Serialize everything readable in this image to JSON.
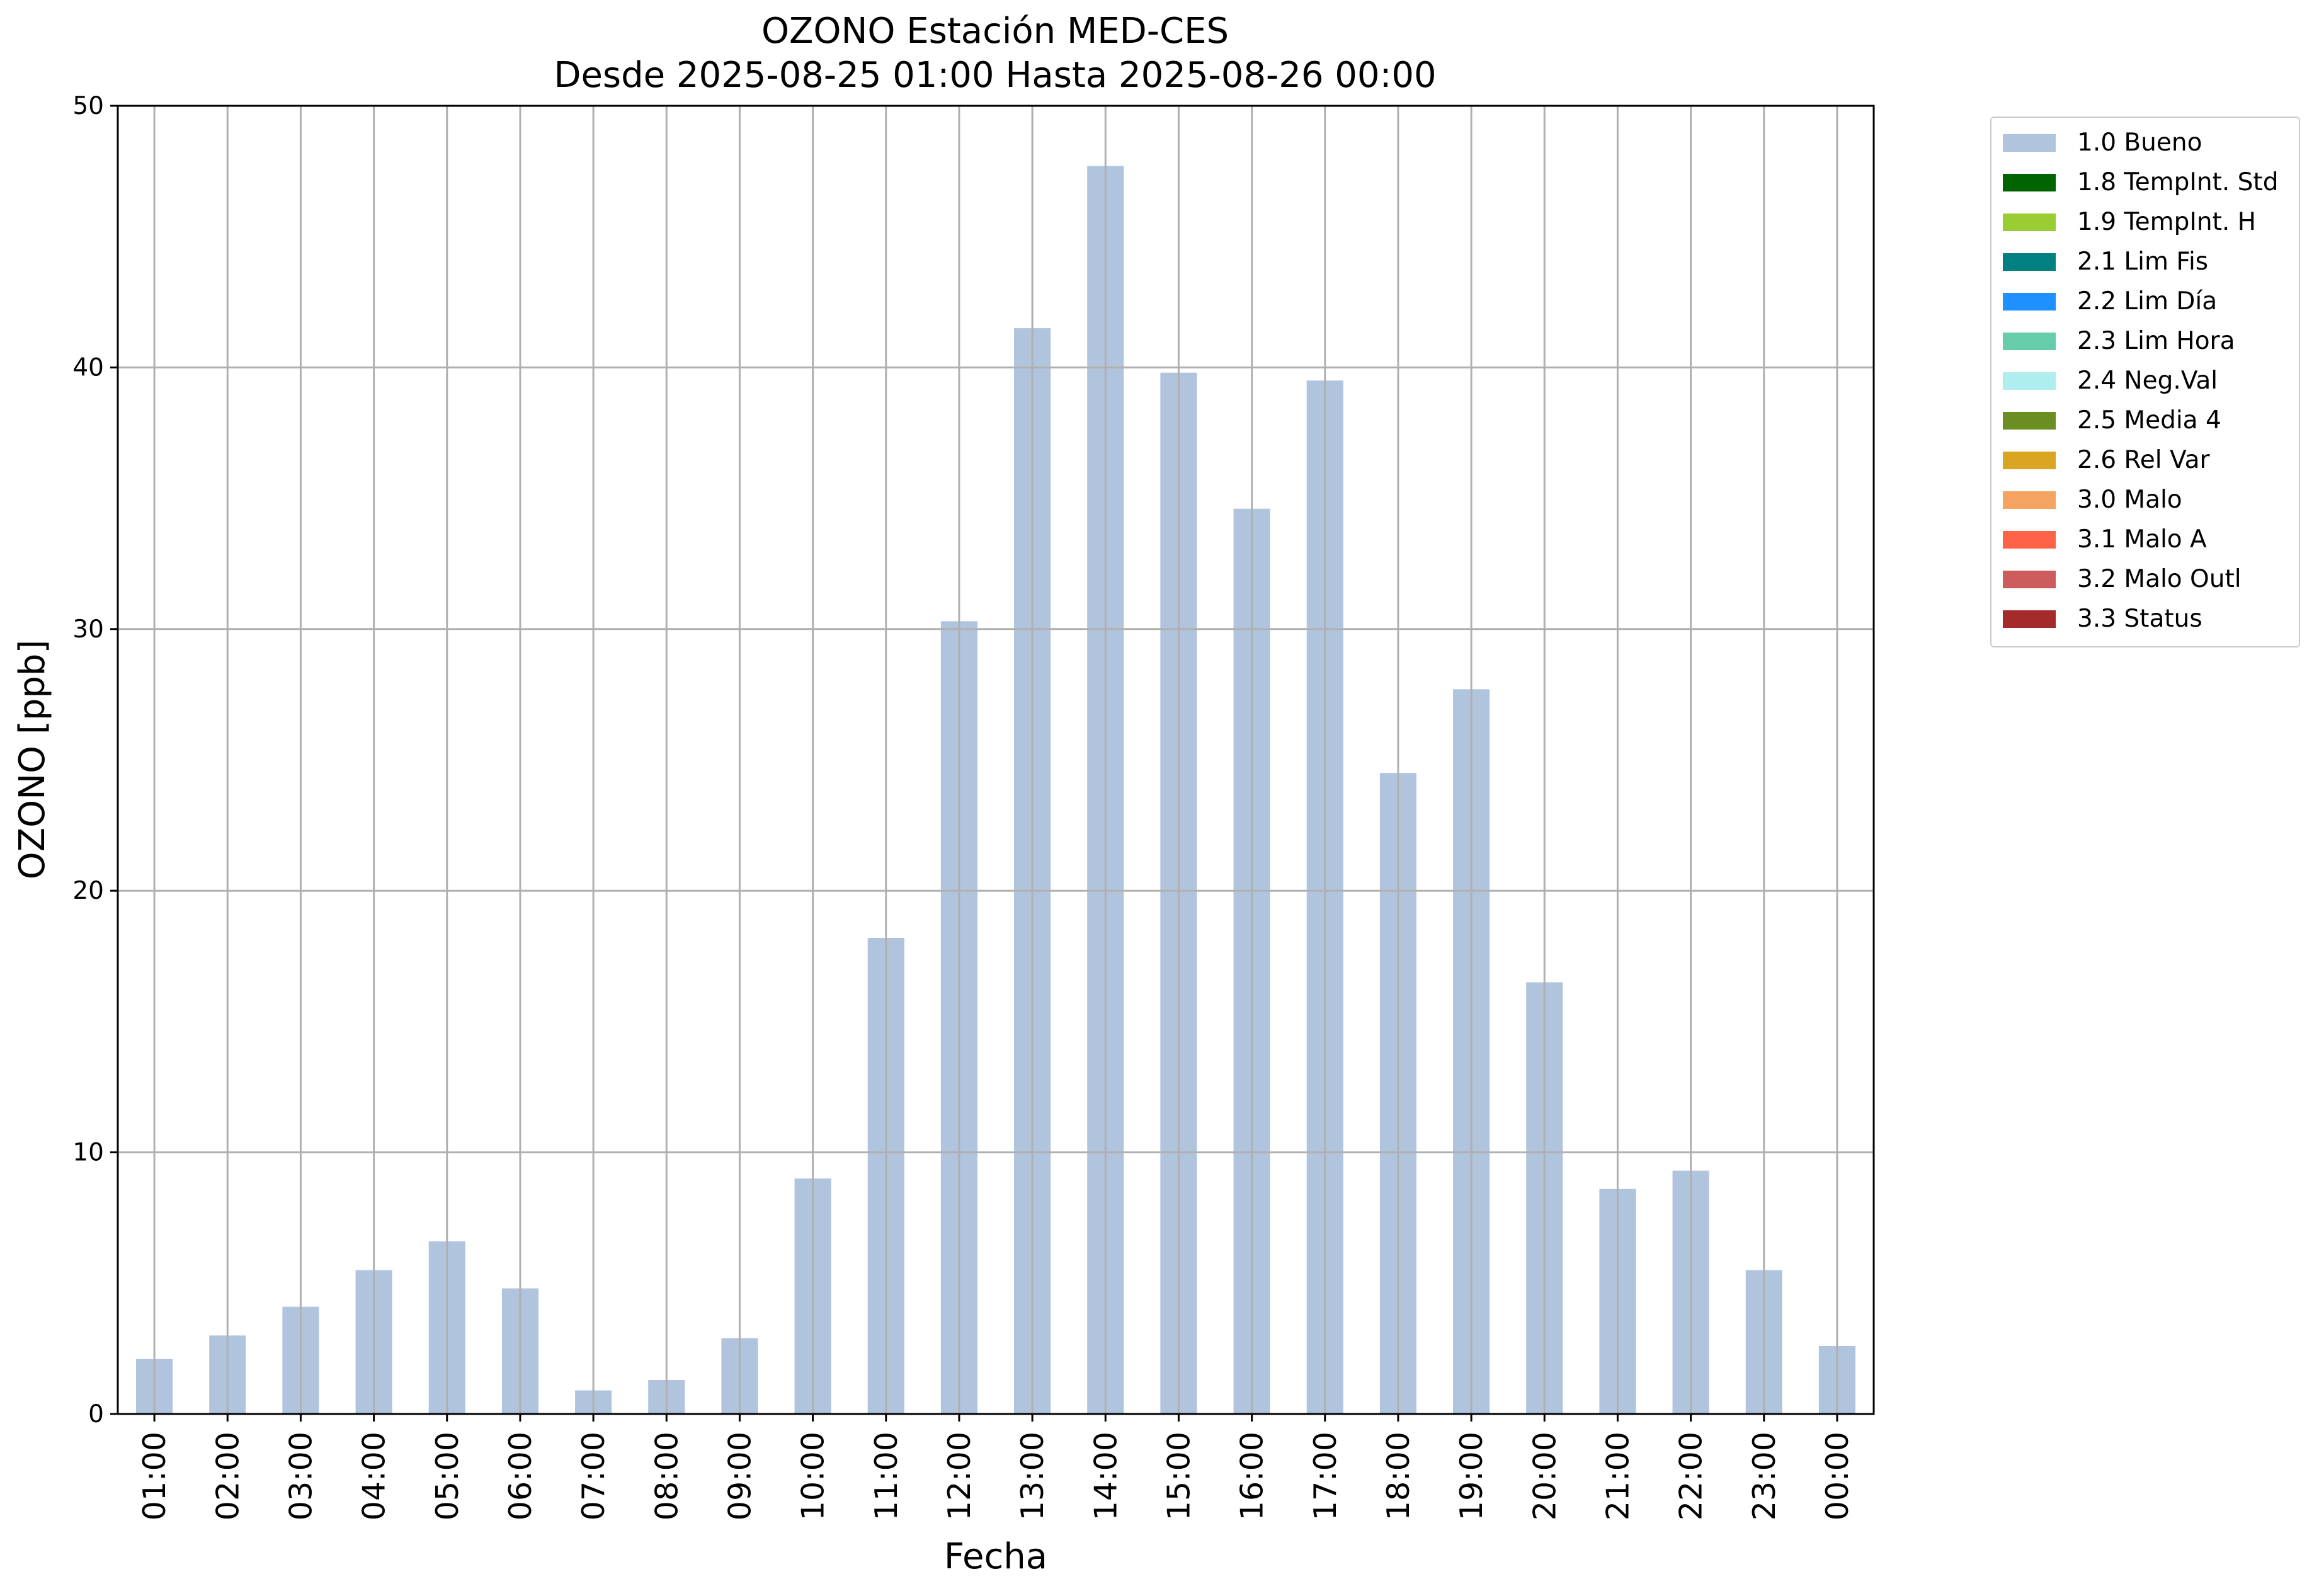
{
  "chart_data": {
    "type": "bar",
    "title_line1": "OZONO Estación MED-CES",
    "title_line2": "Desde 2025-08-25 01:00 Hasta 2025-08-26 00:00",
    "xlabel": "Fecha",
    "ylabel": "OZONO [ppb]",
    "ylim": [
      0,
      50
    ],
    "yticks": [
      "0",
      "10",
      "20",
      "30",
      "40",
      "50"
    ],
    "grid": true,
    "legend_position": "outside-right",
    "categories": [
      "01:00",
      "02:00",
      "03:00",
      "04:00",
      "05:00",
      "06:00",
      "07:00",
      "08:00",
      "09:00",
      "10:00",
      "11:00",
      "12:00",
      "13:00",
      "14:00",
      "15:00",
      "16:00",
      "17:00",
      "18:00",
      "19:00",
      "20:00",
      "21:00",
      "22:00",
      "23:00",
      "00:00"
    ],
    "series": [
      {
        "name": "1.0 Bueno",
        "color": "#b0c4de",
        "values": [
          2.1,
          3.0,
          4.1,
          5.5,
          6.6,
          4.8,
          0.9,
          1.3,
          2.9,
          9.0,
          18.2,
          30.3,
          41.5,
          47.7,
          39.8,
          34.6,
          39.5,
          24.5,
          27.7,
          16.5,
          8.6,
          9.3,
          5.5,
          2.6
        ]
      }
    ],
    "legend": [
      {
        "label": "1.0 Bueno",
        "color": "#b0c4de"
      },
      {
        "label": "1.8 TempInt. Std",
        "color": "#006400"
      },
      {
        "label": "1.9 TempInt. H",
        "color": "#9acd32"
      },
      {
        "label": "2.1 Lim Fis",
        "color": "#008080"
      },
      {
        "label": "2.2 Lim Día",
        "color": "#1e90ff"
      },
      {
        "label": "2.3 Lim Hora",
        "color": "#66cdaa"
      },
      {
        "label": "2.4 Neg.Val",
        "color": "#afeeee"
      },
      {
        "label": "2.5 Media 4",
        "color": "#6b8e23"
      },
      {
        "label": "2.6 Rel Var",
        "color": "#daa520"
      },
      {
        "label": "3.0 Malo",
        "color": "#f4a460"
      },
      {
        "label": "3.1 Malo A",
        "color": "#ff6347"
      },
      {
        "label": "3.2 Malo Outl",
        "color": "#cd5c5c"
      },
      {
        "label": "3.3 Status",
        "color": "#a52a2a"
      }
    ]
  }
}
